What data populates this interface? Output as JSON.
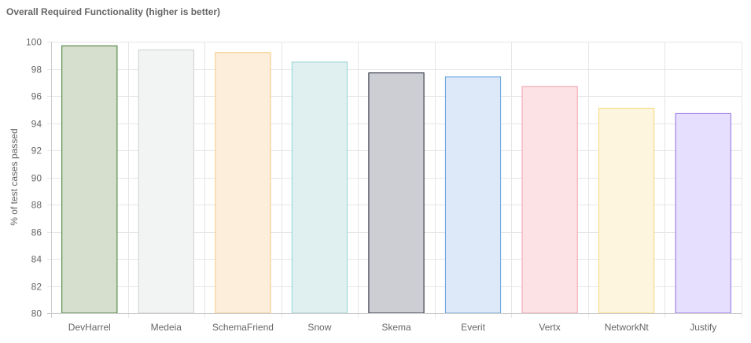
{
  "chart_data": {
    "type": "bar",
    "title": "Overall Required Functionality (higher is better)",
    "xlabel": "",
    "ylabel": "% of test cases passed",
    "ylim": [
      80,
      100
    ],
    "yticks": [
      80,
      82,
      84,
      86,
      88,
      90,
      92,
      94,
      96,
      98,
      100
    ],
    "grid": true,
    "legend": "none",
    "categories": [
      "DevHarrel",
      "Medeia",
      "SchemaFriend",
      "Snow",
      "Skema",
      "Everit",
      "Vertx",
      "NetworkNt",
      "Justify"
    ],
    "values": [
      99.7,
      99.4,
      99.2,
      98.5,
      97.7,
      97.4,
      96.7,
      95.1,
      94.7
    ],
    "bar_fill_colors": [
      "#d6dfce",
      "#f2f3f3",
      "#fdeedb",
      "#e0f0f0",
      "#ccced3",
      "#dde9f9",
      "#fde2e5",
      "#fef5de",
      "#e7dffe"
    ],
    "bar_border_colors": [
      "#3c7a2a",
      "#cfd2d2",
      "#f4c77f",
      "#94d4d4",
      "#1e2433",
      "#62a0dd",
      "#f09fac",
      "#f6d877",
      "#8f6fe0"
    ]
  }
}
